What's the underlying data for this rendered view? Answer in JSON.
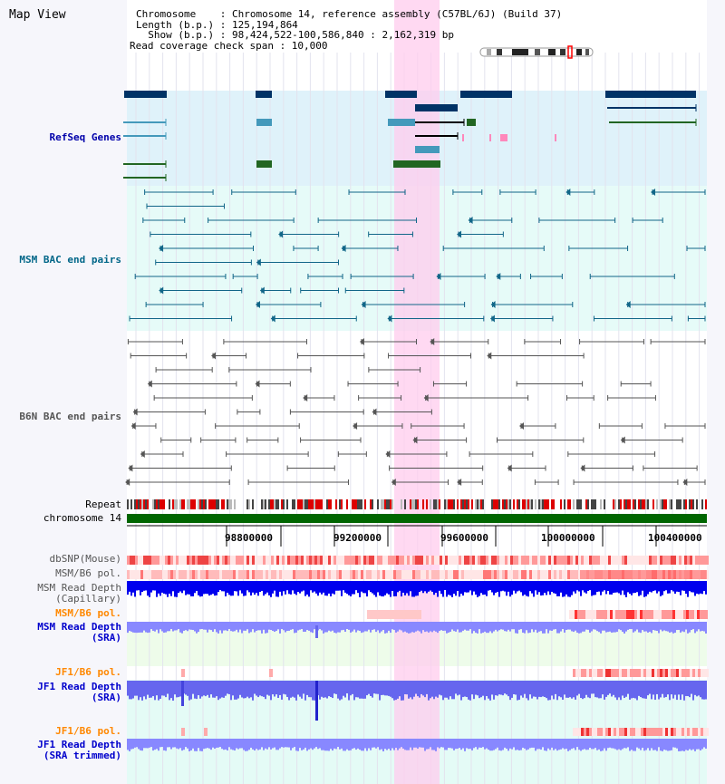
{
  "view_title": "Map View",
  "info": {
    "line1": "Chromosome    : Chromosome 14, reference assembly (C57BL/6J) (Build 37)",
    "line2": "Length (b.p.) : 125,194,864",
    "line3": "  Show (b.p.) : 98,424,522-100,586,840 : 2,162,319 bp",
    "line4": "Read coverage check span : 10,000"
  },
  "tracks": {
    "refseq": "RefSeq Genes",
    "msm_bac": "MSM BAC end pairs",
    "b6n_bac": "B6N BAC end pairs",
    "repeat": "Repeat",
    "chromosome": "chromosome 14",
    "dbsnp": "dbSNP(Mouse)",
    "msm_b6_pol": "MSM/B6 pol.",
    "msm_read_cap": "MSM Read Depth\n(Capillary)",
    "msm_b6_pol2": "MSM/B6 pol.",
    "msm_read_sra": "MSM Read Depth\n(SRA)",
    "jf1_b6_pol": "JF1/B6 pol.",
    "jf1_read_sra": "JF1 Read Depth\n(SRA)",
    "jf1_b6_pol2": "JF1/B6 pol.",
    "jf1_read_trim": "JF1 Read Depth\n(SRA trimmed)"
  },
  "ruler": {
    "ticks": [
      "98800000",
      "99200000",
      "99600000",
      "100000000",
      "100400000"
    ]
  },
  "colors": {
    "refseq_label": "#0000aa",
    "msm_label": "#006688",
    "b6n_label": "#444444",
    "pol_label": "#ff8800",
    "read_label": "#0000cc",
    "highlight": "#ffccee"
  }
}
